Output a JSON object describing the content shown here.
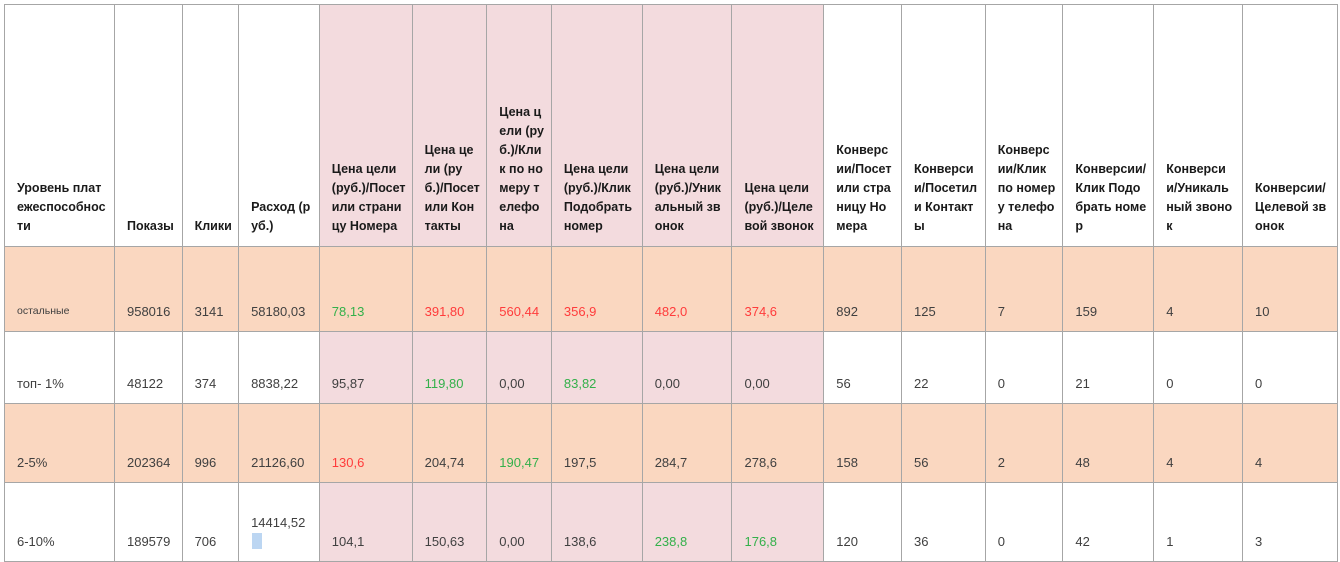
{
  "colors": {
    "header_pink": "#f3dbde",
    "row_orange": "#fad7c0",
    "bad": "#ff3b3b",
    "good": "#33b04a",
    "grid": "#a6a6a6"
  },
  "headers": [
    "Уровень платежеспособности",
    "Показы",
    "Клики",
    "Расход (руб.)",
    "Цена цели (руб.)/Посетили страницу Номера",
    "Цена цели (руб.)/Посетили Контакты",
    "Цена цели (руб.)/Клик по номеру телефона",
    "Цена цели (руб.)/КликПодобрать номер",
    "Цена цели (руб.)/Уникальный звонок",
    "Цена цели (руб.)/Целевой звонок",
    "Конверсии/Посетили страницу Номера",
    "Конверсии/Посетили Контакты",
    "Конверсии/Клик по номеру телефона",
    "Конверсии/Клик Подобрать номер",
    "Конверсии/Уникальный звонок",
    "Конверсии/Целевой звонок"
  ],
  "rows": [
    [
      "остальные",
      "958016",
      "3141",
      "58180,03",
      "78,13",
      "391,80",
      "560,44",
      "356,9",
      "482,0",
      "374,6",
      "892",
      "125",
      "7",
      "159",
      "4",
      "10"
    ],
    [
      "топ- 1%",
      "48122",
      "374",
      "8838,22",
      "95,87",
      "119,80",
      "0,00",
      "83,82",
      "0,00",
      "0,00",
      "56",
      "22",
      "0",
      "21",
      "0",
      "0"
    ],
    [
      "2-5%",
      "202364",
      "996",
      "21126,60",
      "130,6",
      "204,74",
      "190,47",
      "197,5",
      "284,7",
      "278,6",
      "158",
      "56",
      "2",
      "48",
      "4",
      "4"
    ],
    [
      "6-10%",
      "189579",
      "706",
      "14414,52",
      "104,1",
      "150,63",
      "0,00",
      "138,6",
      "238,8",
      "176,8",
      "120",
      "36",
      "0",
      "42",
      "1",
      "3"
    ]
  ]
}
